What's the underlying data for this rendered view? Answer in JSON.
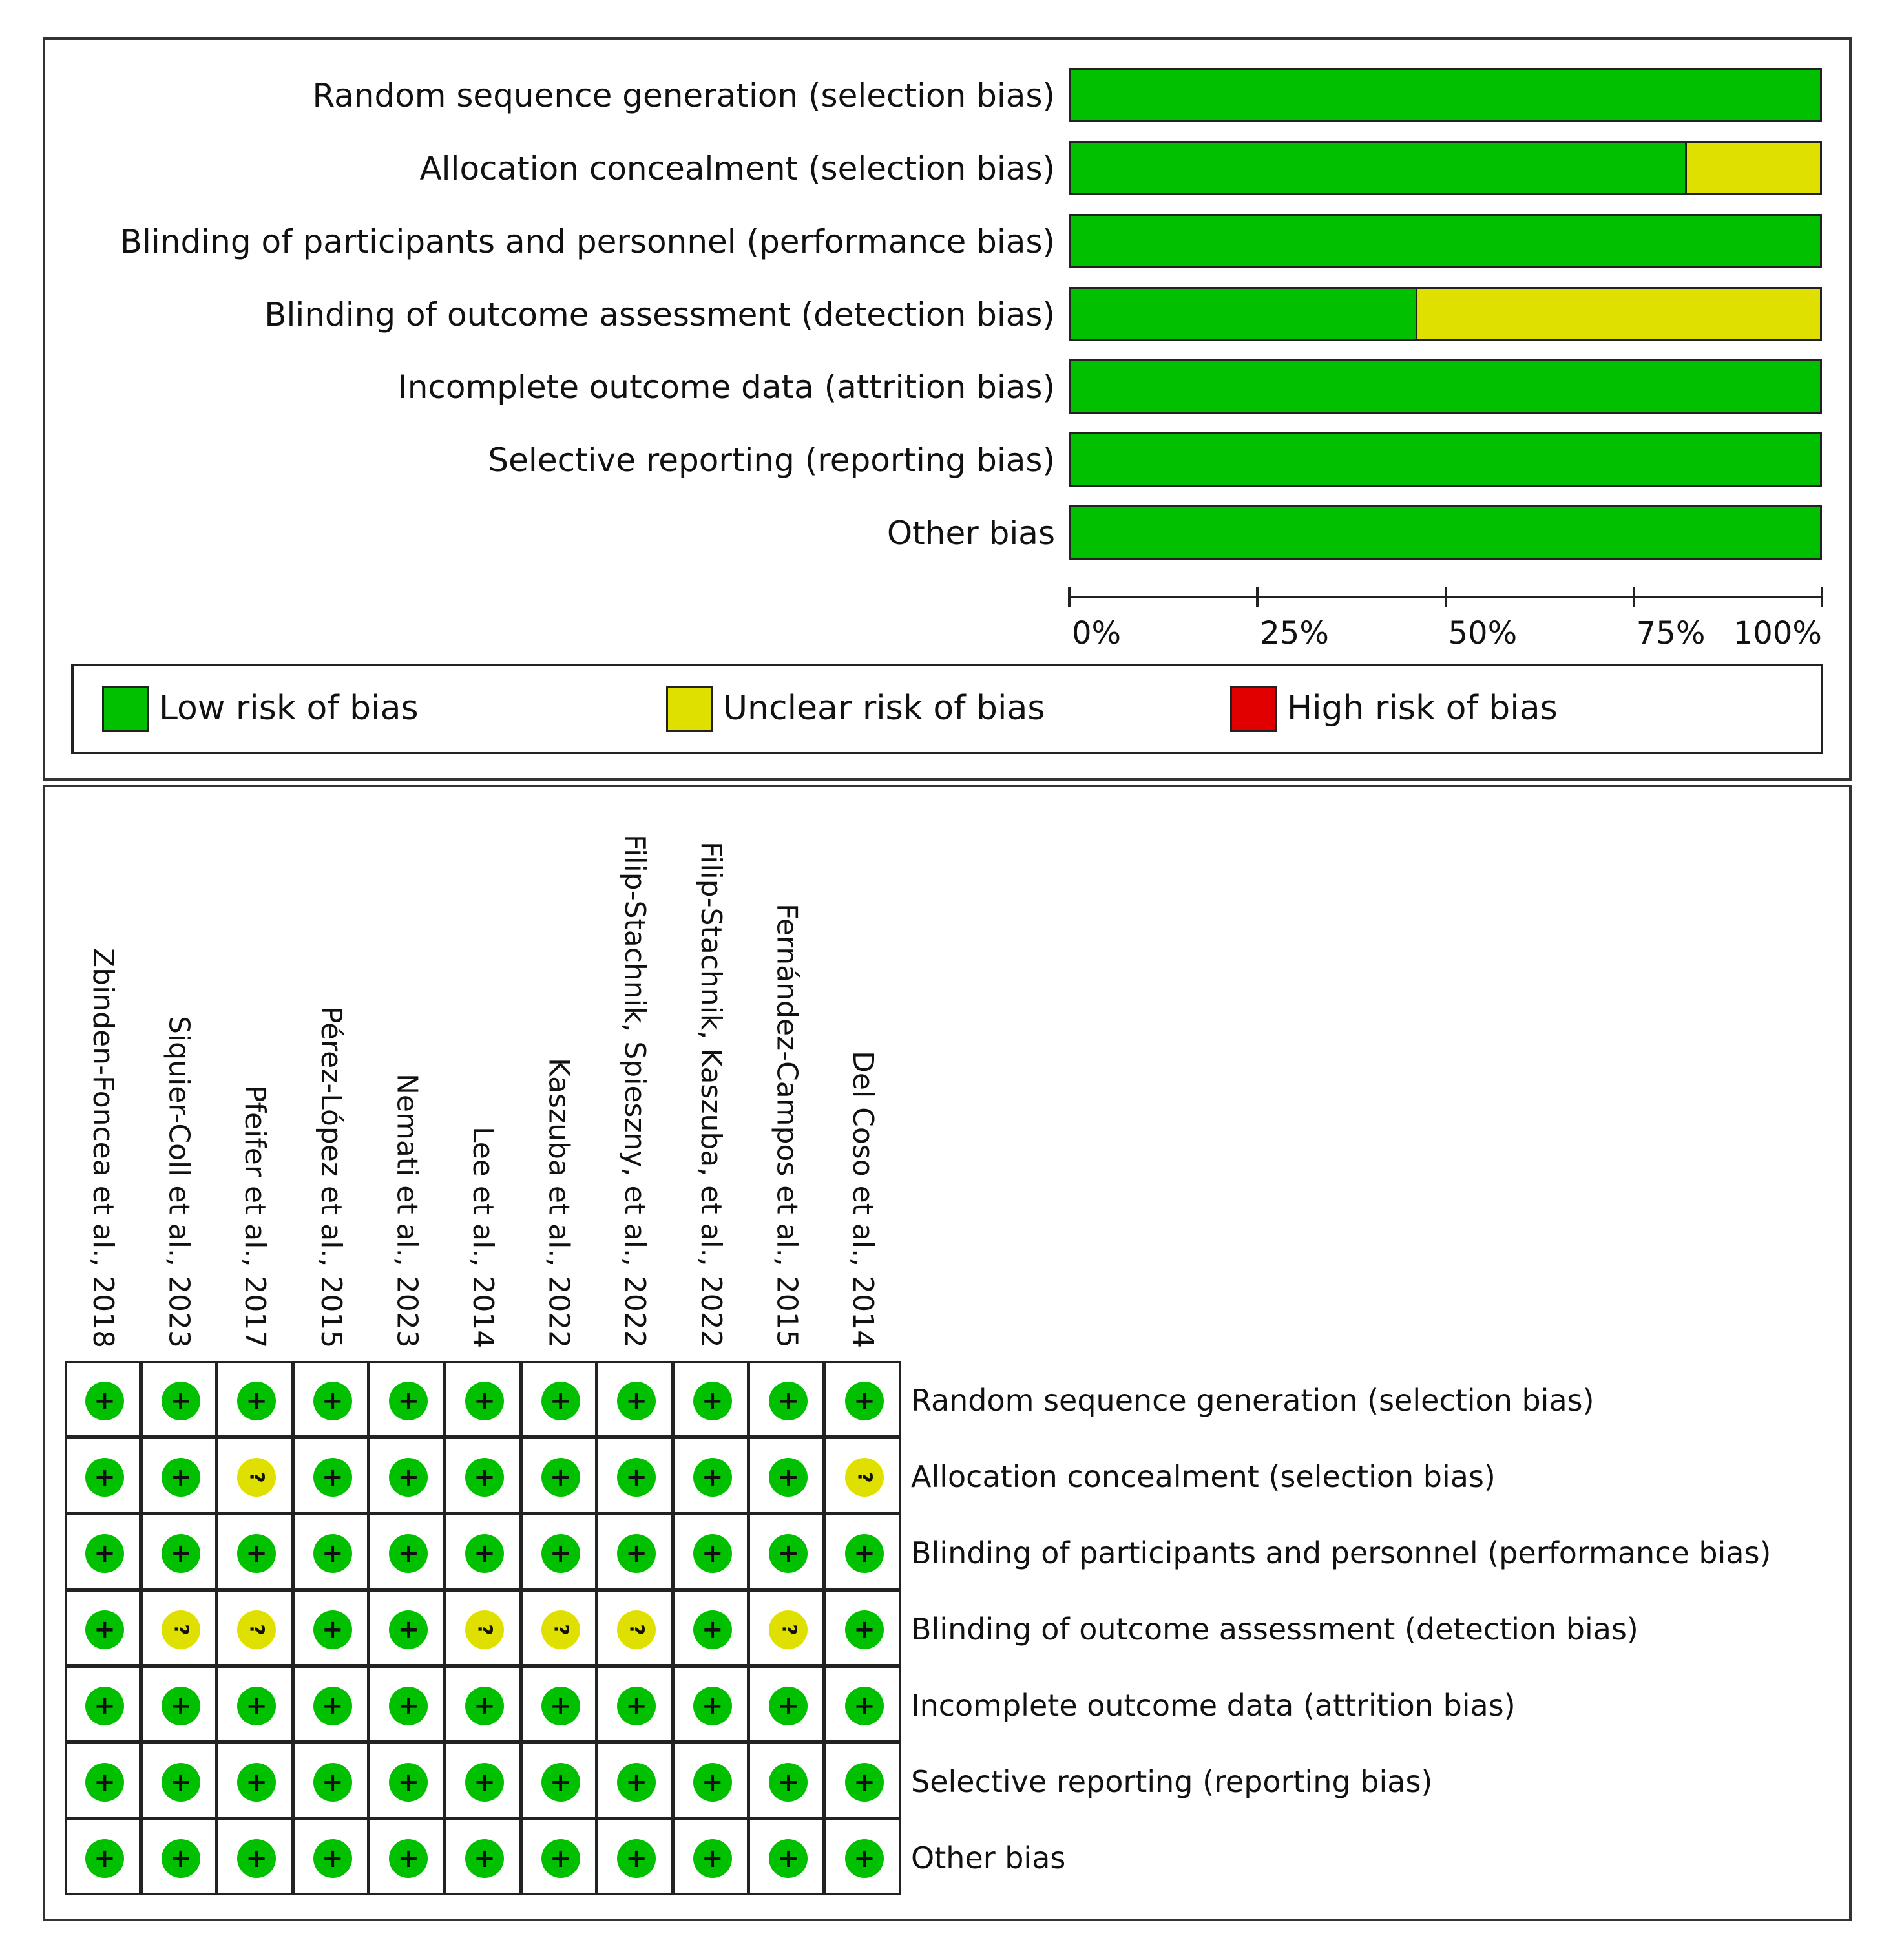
{
  "colors": {
    "low": "#00c000",
    "unclear": "#e0e000",
    "high": "#e00000"
  },
  "chart_data": [
    {
      "type": "bar",
      "orientation": "horizontal",
      "stacked": true,
      "categories": [
        "Random sequence generation (selection bias)",
        "Allocation concealment (selection bias)",
        "Blinding of participants and personnel (performance bias)",
        "Blinding of outcome assessment (detection bias)",
        "Incomplete outcome data (attrition bias)",
        "Selective reporting (reporting bias)",
        "Other bias"
      ],
      "series": [
        {
          "name": "Low risk of bias",
          "color_key": "low",
          "values": [
            100,
            82,
            100,
            46,
            100,
            100,
            100
          ]
        },
        {
          "name": "Unclear risk of bias",
          "color_key": "unclear",
          "values": [
            0,
            18,
            0,
            54,
            0,
            0,
            0
          ]
        },
        {
          "name": "High risk of bias",
          "color_key": "high",
          "values": [
            0,
            0,
            0,
            0,
            0,
            0,
            0
          ]
        }
      ],
      "xlim": [
        0,
        100
      ],
      "xticks": [
        "0%",
        "25%",
        "50%",
        "75%",
        "100%"
      ],
      "legend_position": "bottom"
    },
    {
      "type": "table",
      "studies": [
        "Zbinden-Foncea et al., 2018",
        "Siquier-Coll et al., 2023",
        "Pfeifer et al., 2017",
        "Pérez-López et al., 2015",
        "Nemati et al., 2023",
        "Lee et al., 2014",
        "Kaszuba et al., 2022",
        "Filip-Stachnik, Spieszny, et al., 2022",
        "Filip-Stachnik, Kaszuba, et al., 2022",
        "Fernández-Campos et al., 2015",
        "Del Coso et al., 2014"
      ],
      "domains": [
        "Random sequence generation (selection bias)",
        "Allocation concealment (selection bias)",
        "Blinding of participants and personnel (performance bias)",
        "Blinding of outcome assessment (detection bias)",
        "Incomplete outcome data (attrition bias)",
        "Selective reporting (reporting bias)",
        "Other bias"
      ],
      "judgements": [
        [
          "+",
          "+",
          "+",
          "+",
          "+",
          "+",
          "+",
          "+",
          "+",
          "+",
          "+"
        ],
        [
          "+",
          "+",
          "?",
          "+",
          "+",
          "+",
          "+",
          "+",
          "+",
          "+",
          "?"
        ],
        [
          "+",
          "+",
          "+",
          "+",
          "+",
          "+",
          "+",
          "+",
          "+",
          "+",
          "+"
        ],
        [
          "+",
          "?",
          "?",
          "+",
          "+",
          "?",
          "?",
          "?",
          "+",
          "?",
          "+"
        ],
        [
          "+",
          "+",
          "+",
          "+",
          "+",
          "+",
          "+",
          "+",
          "+",
          "+",
          "+"
        ],
        [
          "+",
          "+",
          "+",
          "+",
          "+",
          "+",
          "+",
          "+",
          "+",
          "+",
          "+"
        ],
        [
          "+",
          "+",
          "+",
          "+",
          "+",
          "+",
          "+",
          "+",
          "+",
          "+",
          "+"
        ]
      ]
    }
  ]
}
